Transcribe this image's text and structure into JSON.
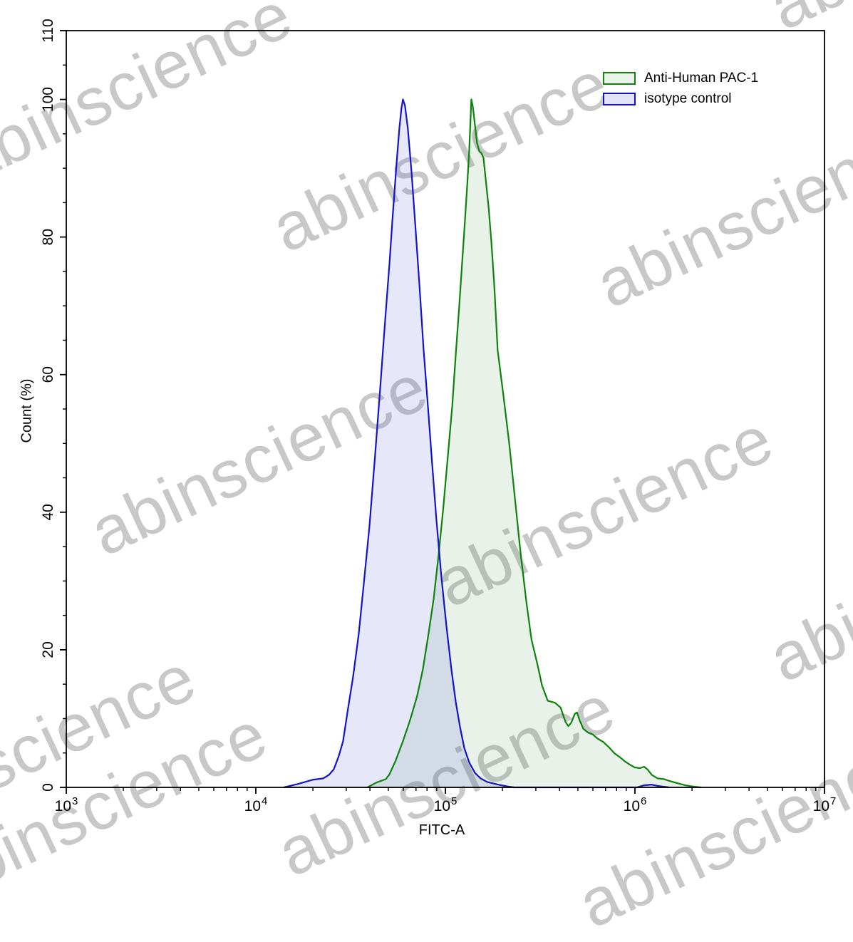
{
  "watermark": {
    "text": "abinscience",
    "color": "#c8c8c8",
    "rotation_deg": -25,
    "instances": [
      [
        -45,
        255
      ],
      [
        400,
        352
      ],
      [
        855,
        430
      ],
      [
        145,
        778
      ],
      [
        630,
        850
      ],
      [
        1098,
        955
      ],
      [
        -180,
        1185
      ],
      [
        408,
        1228
      ],
      [
        -80,
        1265
      ],
      [
        830,
        1300
      ],
      [
        1098,
        40
      ]
    ]
  },
  "legend": {
    "items": [
      {
        "label": "Anti-Human PAC-1",
        "line_color": "#0e830e",
        "fill_color": "#e9f3e9"
      },
      {
        "label": "isotype control",
        "line_color": "#1414c8",
        "fill_color": "#e3e3f8"
      }
    ]
  },
  "axes": {
    "x": {
      "label": "FITC-A",
      "scale": "log10",
      "tick_exponents": [
        3,
        4,
        5,
        6,
        7
      ],
      "tick_base": "10",
      "minor_ticks_per_decade": [
        2,
        3,
        4,
        5,
        6,
        7,
        8,
        9
      ]
    },
    "y": {
      "label": "Count (%)",
      "major_ticks": [
        0,
        20,
        40,
        60,
        80,
        100,
        110
      ],
      "minor_step": 5,
      "min": 0,
      "max": 110
    }
  },
  "chart_data": {
    "type": "area",
    "title": "",
    "xlabel": "FITC-A",
    "ylabel": "Count (%)",
    "xlim_log10": [
      3,
      7
    ],
    "ylim": [
      0,
      110
    ],
    "grid": false,
    "legend_position": "top-right",
    "series": [
      {
        "name": "Anti-Human PAC-1",
        "line_color": "#0e830e",
        "fill_color": "rgba(45,140,45,0.11)",
        "points": [
          [
            4.588,
            0
          ],
          [
            4.637,
            0.7
          ],
          [
            4.686,
            1.2
          ],
          [
            4.705,
            1.9
          ],
          [
            4.738,
            3.9
          ],
          [
            4.776,
            6.7
          ],
          [
            4.814,
            9.8
          ],
          [
            4.851,
            13.3
          ],
          [
            4.881,
            17.1
          ],
          [
            4.911,
            22.3
          ],
          [
            4.938,
            27.4
          ],
          [
            4.964,
            33.7
          ],
          [
            4.99,
            40.9
          ],
          [
            5.013,
            48.2
          ],
          [
            5.036,
            55.4
          ],
          [
            5.054,
            62.7
          ],
          [
            5.073,
            69.9
          ],
          [
            5.088,
            76.1
          ],
          [
            5.103,
            82.3
          ],
          [
            5.115,
            87.5
          ],
          [
            5.126,
            92.7
          ],
          [
            5.133,
            97.4
          ],
          [
            5.137,
            100
          ],
          [
            5.145,
            98.9
          ],
          [
            5.156,
            96.3
          ],
          [
            5.167,
            93.7
          ],
          [
            5.179,
            92.5
          ],
          [
            5.19,
            92.2
          ],
          [
            5.201,
            91.5
          ],
          [
            5.212,
            88.6
          ],
          [
            5.228,
            84.4
          ],
          [
            5.243,
            79.2
          ],
          [
            5.258,
            73
          ],
          [
            5.276,
            63.5
          ],
          [
            5.306,
            57
          ],
          [
            5.337,
            50
          ],
          [
            5.367,
            42
          ],
          [
            5.397,
            34
          ],
          [
            5.427,
            27
          ],
          [
            5.454,
            21.5
          ],
          [
            5.484,
            18.1
          ],
          [
            5.51,
            14.8
          ],
          [
            5.54,
            12.6
          ],
          [
            5.578,
            12.3
          ],
          [
            5.608,
            11.6
          ],
          [
            5.634,
            9.5
          ],
          [
            5.649,
            8.9
          ],
          [
            5.664,
            9.4
          ],
          [
            5.683,
            10.7
          ],
          [
            5.694,
            10.9
          ],
          [
            5.709,
            9.7
          ],
          [
            5.728,
            8.5
          ],
          [
            5.751,
            8
          ],
          [
            5.777,
            7.7
          ],
          [
            5.803,
            7.1
          ],
          [
            5.833,
            6.6
          ],
          [
            5.864,
            5.8
          ],
          [
            5.89,
            5
          ],
          [
            5.92,
            4.4
          ],
          [
            5.946,
            3.8
          ],
          [
            5.973,
            3.3
          ],
          [
            5.999,
            2.9
          ],
          [
            6.026,
            2.8
          ],
          [
            6.048,
            3
          ],
          [
            6.067,
            2.6
          ],
          [
            6.089,
            1.8
          ],
          [
            6.12,
            1.3
          ],
          [
            6.153,
            1.2
          ],
          [
            6.187,
            0.9
          ],
          [
            6.225,
            0.6
          ],
          [
            6.266,
            0.3
          ],
          [
            6.311,
            0.1
          ],
          [
            6.349,
            0
          ]
        ]
      },
      {
        "name": "isotype control",
        "line_color": "#1414c8",
        "fill_color": "rgba(70,70,215,0.13)",
        "points": [
          [
            4.148,
            0
          ],
          [
            4.223,
            0.5
          ],
          [
            4.298,
            1.1
          ],
          [
            4.355,
            1.3
          ],
          [
            4.385,
            1.8
          ],
          [
            4.411,
            2.6
          ],
          [
            4.437,
            4.5
          ],
          [
            4.46,
            6.7
          ],
          [
            4.486,
            11.4
          ],
          [
            4.513,
            16.1
          ],
          [
            4.543,
            22.3
          ],
          [
            4.569,
            29.5
          ],
          [
            4.599,
            37.8
          ],
          [
            4.629,
            48.2
          ],
          [
            4.656,
            58
          ],
          [
            4.682,
            67.8
          ],
          [
            4.705,
            76.1
          ],
          [
            4.723,
            83.4
          ],
          [
            4.742,
            90.6
          ],
          [
            4.757,
            95.8
          ],
          [
            4.768,
            98.7
          ],
          [
            4.776,
            100
          ],
          [
            4.787,
            99.1
          ],
          [
            4.802,
            95.8
          ],
          [
            4.821,
            89.6
          ],
          [
            4.84,
            82.3
          ],
          [
            4.863,
            73
          ],
          [
            4.885,
            63.7
          ],
          [
            4.908,
            55.4
          ],
          [
            4.93,
            47.1
          ],
          [
            4.953,
            38.8
          ],
          [
            4.979,
            30.6
          ],
          [
            5.006,
            23.3
          ],
          [
            5.032,
            17.1
          ],
          [
            5.055,
            12.4
          ],
          [
            5.077,
            8.8
          ],
          [
            5.1,
            5.7
          ],
          [
            5.126,
            3.6
          ],
          [
            5.156,
            2.1
          ],
          [
            5.186,
            1.3
          ],
          [
            5.22,
            0.8
          ],
          [
            5.277,
            0.4
          ],
          [
            5.333,
            0.1
          ],
          [
            5.363,
            0
          ],
          [
            6.011,
            0
          ],
          [
            6.048,
            0.3
          ],
          [
            6.086,
            0.4
          ],
          [
            6.123,
            0.2
          ],
          [
            6.18,
            0
          ]
        ]
      }
    ]
  }
}
